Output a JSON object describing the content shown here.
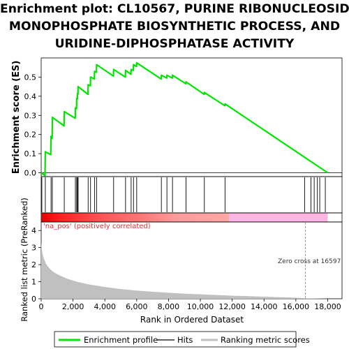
{
  "chart_data": {
    "type": "line",
    "title_lines": [
      "Enrichment plot: CL10567, PURINE RIBONUCLEOSIDE",
      "MONOPHOSPHATE BIOSYNTHETIC PROCESS, AND",
      "URIDINE-DIPHOSPHATASE ACTIVITY"
    ],
    "xlabel": "Rank in Ordered Dataset",
    "ylabel_top": "Enrichment score (ES)",
    "ylabel_bottom": "Ranked list metric (PreRanked)",
    "xlim": [
      0,
      18900
    ],
    "x_ticks": [
      0,
      2000,
      4000,
      6000,
      8000,
      10000,
      12000,
      14000,
      16000,
      18000
    ],
    "x_tick_labels": [
      "0",
      "2,000",
      "4,000",
      "6,000",
      "8,000",
      "10,000",
      "12,000",
      "14,000",
      "16,000",
      "18,000"
    ],
    "es_ylim": [
      -0.02,
      0.6
    ],
    "es_ticks": [
      0.0,
      0.1,
      0.2,
      0.3,
      0.4,
      0.5
    ],
    "es_tick_labels": [
      "0.0",
      "0.1",
      "0.2",
      "0.3",
      "0.4",
      "0.5"
    ],
    "metric_ylim": [
      0,
      4.5
    ],
    "metric_ticks": [
      0,
      1,
      2,
      3,
      4
    ],
    "metric_tick_labels": [
      "0",
      "1",
      "2",
      "3",
      "4"
    ],
    "hits": [
      40,
      260,
      620,
      700,
      1450,
      2150,
      2230,
      2280,
      2320,
      2950,
      3100,
      3350,
      3480,
      4550,
      5300,
      5650,
      5800,
      6000,
      7550,
      7900,
      8250,
      9100,
      10250,
      11550,
      16550,
      16950,
      17150,
      17350,
      17500,
      17850
    ],
    "es_curve": [
      [
        0,
        0.0
      ],
      [
        240,
        -0.015
      ],
      [
        260,
        0.11
      ],
      [
        600,
        0.095
      ],
      [
        620,
        0.19
      ],
      [
        690,
        0.18
      ],
      [
        700,
        0.29
      ],
      [
        1440,
        0.245
      ],
      [
        1450,
        0.32
      ],
      [
        2140,
        0.285
      ],
      [
        2150,
        0.34
      ],
      [
        2220,
        0.335
      ],
      [
        2230,
        0.39
      ],
      [
        2270,
        0.385
      ],
      [
        2280,
        0.415
      ],
      [
        2310,
        0.41
      ],
      [
        2320,
        0.45
      ],
      [
        2940,
        0.41
      ],
      [
        2950,
        0.46
      ],
      [
        3090,
        0.455
      ],
      [
        3100,
        0.5
      ],
      [
        3340,
        0.49
      ],
      [
        3350,
        0.53
      ],
      [
        3470,
        0.525
      ],
      [
        3480,
        0.565
      ],
      [
        4540,
        0.505
      ],
      [
        4550,
        0.54
      ],
      [
        5290,
        0.5
      ],
      [
        5300,
        0.535
      ],
      [
        5640,
        0.515
      ],
      [
        5650,
        0.54
      ],
      [
        5790,
        0.535
      ],
      [
        5800,
        0.565
      ],
      [
        5990,
        0.555
      ],
      [
        6000,
        0.575
      ],
      [
        7540,
        0.49
      ],
      [
        7550,
        0.51
      ],
      [
        7890,
        0.495
      ],
      [
        7900,
        0.51
      ],
      [
        8240,
        0.495
      ],
      [
        8250,
        0.51
      ],
      [
        9090,
        0.465
      ],
      [
        9100,
        0.475
      ],
      [
        10240,
        0.41
      ],
      [
        10250,
        0.42
      ],
      [
        11540,
        0.35
      ],
      [
        11550,
        0.36
      ],
      [
        18000,
        0.0
      ]
    ],
    "metric_curve": [
      [
        0,
        3.3
      ],
      [
        50,
        2.8
      ],
      [
        150,
        2.4
      ],
      [
        300,
        2.05
      ],
      [
        500,
        1.8
      ],
      [
        800,
        1.55
      ],
      [
        1200,
        1.35
      ],
      [
        1700,
        1.15
      ],
      [
        2300,
        0.98
      ],
      [
        3000,
        0.84
      ],
      [
        4000,
        0.69
      ],
      [
        5000,
        0.57
      ],
      [
        6000,
        0.48
      ],
      [
        7000,
        0.41
      ],
      [
        8000,
        0.35
      ],
      [
        9000,
        0.3
      ],
      [
        10000,
        0.26
      ],
      [
        11000,
        0.22
      ],
      [
        12000,
        0.18
      ],
      [
        13000,
        0.15
      ],
      [
        14000,
        0.12
      ],
      [
        15000,
        0.09
      ],
      [
        16000,
        0.06
      ],
      [
        16597,
        0.03
      ],
      [
        18000,
        0.0
      ]
    ],
    "zero_cross": 16597,
    "zero_cross_label": "Zero cross at 16597",
    "pos_label": "'na_pos' (positively correlated)",
    "pos_end": 11800,
    "legend": [
      "Enrichment profile",
      "Hits",
      "Ranking metric scores"
    ],
    "colors": {
      "curve": "#00e600",
      "hit": "#000000",
      "metric_fill": "#c0c0c0",
      "pos_label": "#e03030",
      "bar_red_strong": "#ff0000",
      "bar_red_light": "#ff8080",
      "bar_pink": "#ffb4e1",
      "zero_line": "#9a9a9a"
    }
  }
}
